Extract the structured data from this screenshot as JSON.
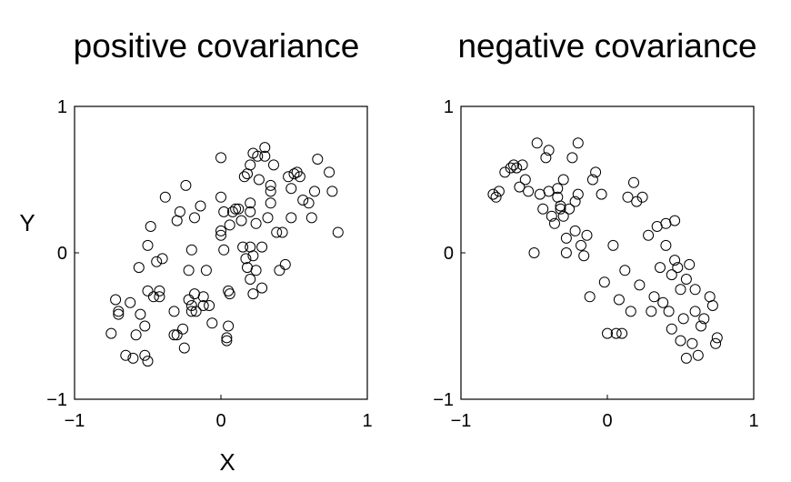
{
  "figure": {
    "xlabel": "X",
    "ylabel": "Y"
  },
  "chart_data": [
    {
      "type": "scatter",
      "title": "positive covariance",
      "xlim": [
        -1,
        1
      ],
      "ylim": [
        -1,
        1
      ],
      "xticks": [
        "−1",
        "0",
        "1"
      ],
      "yticks": [
        "−1",
        "0",
        "1"
      ],
      "marker": "open-circle",
      "grid": false,
      "x": [
        -0.75,
        -0.72,
        -0.7,
        -0.7,
        -0.65,
        -0.62,
        -0.6,
        -0.58,
        -0.56,
        -0.55,
        -0.52,
        -0.52,
        -0.5,
        -0.5,
        -0.5,
        -0.48,
        -0.46,
        -0.44,
        -0.42,
        -0.42,
        -0.4,
        -0.38,
        -0.32,
        -0.32,
        -0.3,
        -0.3,
        -0.28,
        -0.26,
        -0.25,
        -0.24,
        -0.22,
        -0.22,
        -0.2,
        -0.2,
        -0.2,
        -0.18,
        -0.18,
        -0.17,
        -0.14,
        -0.12,
        -0.12,
        -0.1,
        -0.08,
        -0.06,
        0.0,
        0.0,
        0.0,
        0.0,
        0.02,
        0.02,
        0.04,
        0.04,
        0.05,
        0.05,
        0.06,
        0.06,
        0.08,
        0.1,
        0.12,
        0.14,
        0.15,
        0.16,
        0.17,
        0.18,
        0.18,
        0.2,
        0.2,
        0.2,
        0.2,
        0.2,
        0.22,
        0.22,
        0.22,
        0.24,
        0.24,
        0.25,
        0.26,
        0.28,
        0.28,
        0.3,
        0.3,
        0.32,
        0.34,
        0.34,
        0.34,
        0.36,
        0.38,
        0.4,
        0.42,
        0.44,
        0.46,
        0.48,
        0.48,
        0.5,
        0.52,
        0.54,
        0.56,
        0.6,
        0.62,
        0.64,
        0.66,
        0.74,
        0.76,
        0.8
      ],
      "y": [
        -0.55,
        -0.32,
        -0.4,
        -0.42,
        -0.7,
        -0.34,
        -0.72,
        -0.56,
        -0.1,
        -0.42,
        -0.5,
        -0.7,
        -0.74,
        0.05,
        -0.26,
        0.18,
        -0.3,
        -0.06,
        -0.26,
        -0.3,
        -0.04,
        0.38,
        -0.4,
        -0.56,
        0.22,
        -0.56,
        0.28,
        -0.52,
        -0.65,
        0.46,
        -0.12,
        -0.32,
        -0.36,
        -0.4,
        0.02,
        0.24,
        -0.28,
        -0.4,
        0.32,
        -0.36,
        -0.3,
        -0.12,
        -0.36,
        -0.48,
        0.65,
        0.38,
        0.15,
        0.12,
        0.02,
        0.28,
        -0.6,
        -0.58,
        -0.5,
        -0.26,
        0.19,
        -0.28,
        0.28,
        0.3,
        0.3,
        0.22,
        0.04,
        0.52,
        -0.04,
        -0.1,
        0.54,
        0.04,
        -0.18,
        0.28,
        0.34,
        0.6,
        -0.02,
        -0.28,
        0.68,
        -0.12,
        0.2,
        0.66,
        0.5,
        0.04,
        -0.24,
        0.66,
        0.72,
        0.24,
        0.42,
        0.46,
        0.34,
        0.6,
        0.14,
        -0.12,
        0.14,
        -0.08,
        0.52,
        0.24,
        0.44,
        0.54,
        0.55,
        0.52,
        0.36,
        0.34,
        0.24,
        0.42,
        0.64,
        0.55,
        0.42,
        0.14
      ]
    },
    {
      "type": "scatter",
      "title": "negative covariance",
      "xlim": [
        -1,
        1
      ],
      "ylim": [
        -1,
        1
      ],
      "xticks": [
        "−1",
        "0",
        "1"
      ],
      "yticks": [
        "−1",
        "0",
        "1"
      ],
      "marker": "open-circle",
      "grid": false,
      "x": [
        -0.78,
        -0.76,
        -0.74,
        -0.7,
        -0.66,
        -0.64,
        -0.62,
        -0.6,
        -0.58,
        -0.56,
        -0.54,
        -0.5,
        -0.48,
        -0.46,
        -0.44,
        -0.42,
        -0.4,
        -0.4,
        -0.38,
        -0.36,
        -0.34,
        -0.34,
        -0.32,
        -0.32,
        -0.3,
        -0.3,
        -0.28,
        -0.28,
        -0.26,
        -0.24,
        -0.22,
        -0.22,
        -0.2,
        -0.2,
        -0.18,
        -0.16,
        -0.14,
        -0.12,
        -0.1,
        -0.08,
        -0.04,
        -0.02,
        0.0,
        0.04,
        0.06,
        0.08,
        0.1,
        0.12,
        0.14,
        0.16,
        0.18,
        0.2,
        0.22,
        0.24,
        0.28,
        0.3,
        0.32,
        0.34,
        0.36,
        0.38,
        0.4,
        0.4,
        0.42,
        0.44,
        0.44,
        0.46,
        0.46,
        0.48,
        0.5,
        0.5,
        0.52,
        0.54,
        0.54,
        0.56,
        0.58,
        0.6,
        0.6,
        0.62,
        0.64,
        0.66,
        0.7,
        0.72,
        0.74,
        0.75
      ],
      "y": [
        0.4,
        0.38,
        0.42,
        0.55,
        0.58,
        0.6,
        0.58,
        0.45,
        0.6,
        0.5,
        0.42,
        0.0,
        0.75,
        0.4,
        0.3,
        0.65,
        0.42,
        0.7,
        0.25,
        0.2,
        0.44,
        0.38,
        0.32,
        0.3,
        0.25,
        0.5,
        0.1,
        0.0,
        0.3,
        0.65,
        0.35,
        0.15,
        0.75,
        0.4,
        0.05,
        -0.02,
        0.12,
        -0.3,
        0.5,
        0.55,
        0.4,
        -0.2,
        -0.55,
        0.05,
        -0.55,
        -0.32,
        -0.55,
        -0.12,
        0.38,
        -0.4,
        0.48,
        0.35,
        -0.22,
        0.38,
        0.12,
        -0.4,
        -0.3,
        0.18,
        -0.1,
        -0.34,
        0.2,
        0.05,
        -0.4,
        -0.15,
        -0.52,
        0.22,
        -0.05,
        -0.1,
        -0.6,
        -0.25,
        -0.45,
        -0.72,
        -0.18,
        -0.08,
        -0.62,
        -0.25,
        -0.4,
        -0.7,
        -0.5,
        -0.45,
        -0.3,
        -0.36,
        -0.62,
        -0.58
      ]
    }
  ]
}
